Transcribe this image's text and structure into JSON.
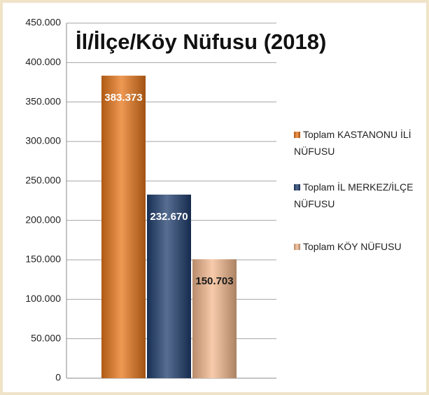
{
  "chart_data": {
    "type": "bar",
    "title": "İl/İlçe/Köy Nüfusu (2018)",
    "categories": [
      null
    ],
    "series": [
      {
        "name": "Toplam KASTANONU İLİ NÜFUSU",
        "color": "#e8761a",
        "label_color": "#ffffff",
        "values": [
          383373
        ],
        "value_labels": [
          "383.373"
        ]
      },
      {
        "name": "Toplam İL MERKEZ/İLÇE NÜFUSU",
        "color": "#1f3e6e",
        "label_color": "#ffffff",
        "values": [
          232670
        ],
        "value_labels": [
          "232.670"
        ]
      },
      {
        "name": "Toplam KÖY NÜFUSU",
        "color": "#f4b98e",
        "label_color": "#1a1a1a",
        "values": [
          150703
        ],
        "value_labels": [
          "150.703"
        ]
      }
    ],
    "ylim": [
      0,
      450000
    ],
    "yticks": [
      0,
      {
        "value": 50000,
        "label": "50.000"
      },
      {
        "value": 100000,
        "label": "100.000"
      },
      {
        "value": 150000,
        "label": "150.000"
      },
      {
        "value": 200000,
        "label": "200.000"
      },
      {
        "value": 250000,
        "label": "250.000"
      },
      {
        "value": 300000,
        "label": "300.000"
      },
      {
        "value": 350000,
        "label": "350.000"
      },
      {
        "value": 400000,
        "label": "400.000"
      },
      {
        "value": 450000,
        "label": "450.000"
      }
    ],
    "grid": true,
    "legend": "right"
  }
}
